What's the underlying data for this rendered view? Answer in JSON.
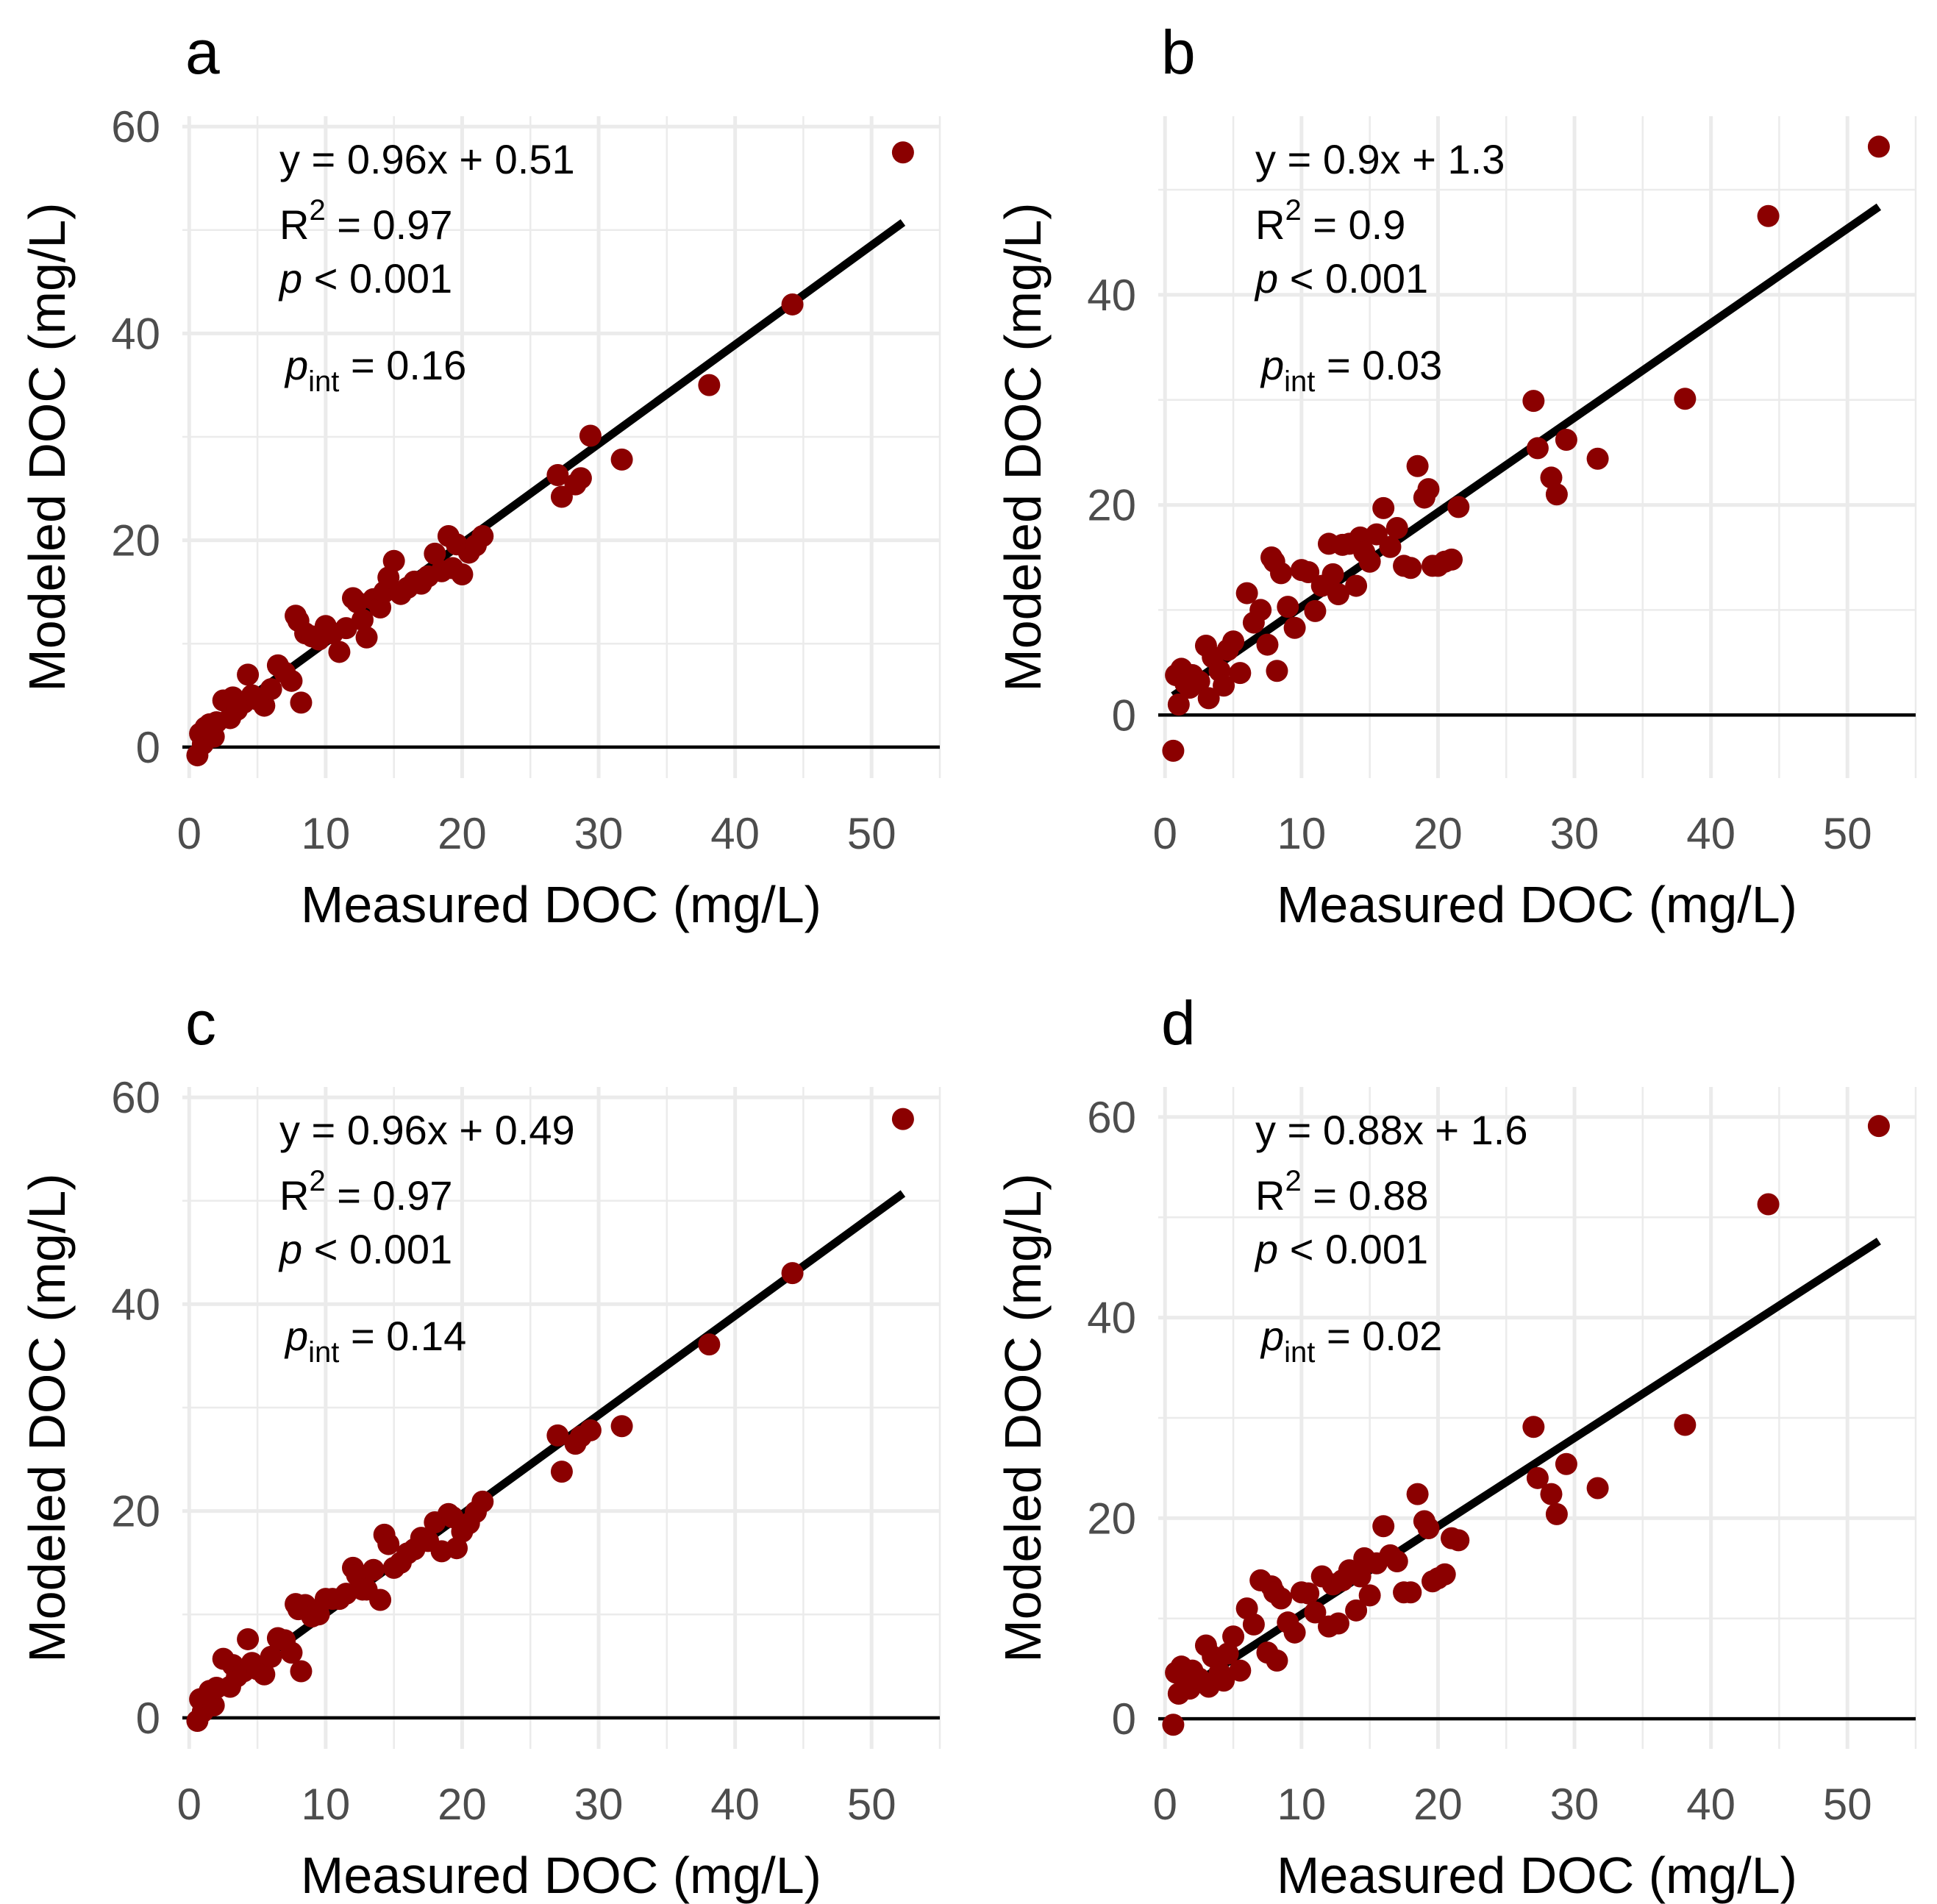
{
  "colors": {
    "point": "#8b0000",
    "fit_line": "#000000",
    "grid": "#ebebeb",
    "tick_text": "#4d4d4d"
  },
  "measured_x": [
    0.6,
    0.8,
    1.0,
    1.2,
    1.5,
    1.8,
    2.0,
    2.5,
    3.0,
    3.2,
    3.5,
    4.0,
    4.3,
    4.6,
    5.0,
    5.5,
    6.0,
    6.5,
    7.0,
    7.5,
    7.8,
    8.0,
    8.2,
    8.5,
    9.0,
    9.5,
    10.0,
    10.5,
    11.0,
    11.5,
    12.0,
    12.3,
    12.7,
    13.0,
    13.5,
    14.0,
    14.3,
    14.6,
    15.0,
    15.5,
    16.0,
    16.5,
    17.0,
    17.5,
    18.0,
    18.5,
    19.0,
    19.3,
    19.6,
    20.0,
    20.5,
    21.0,
    21.5,
    27.0,
    27.3,
    28.3,
    28.7,
    29.4,
    31.7,
    38.1,
    44.2,
    52.3
  ],
  "chart_data": [
    {
      "panel": "a",
      "type": "scatter",
      "xlabel": "Measured DOC (mg/L)",
      "ylabel": "Modeled DOC (mg/L)",
      "xlim": [
        -0.5,
        55
      ],
      "ylim": [
        -3,
        61
      ],
      "x_ticks": [
        "0",
        "10",
        "20",
        "30",
        "40",
        "50"
      ],
      "y_ticks": [
        "0",
        "20",
        "40",
        "60"
      ],
      "y_tick_values": [
        0,
        20,
        40,
        60
      ],
      "fit": {
        "slope": 0.96,
        "intercept": 0.51,
        "x_range": [
          0.6,
          52.3
        ]
      },
      "annotation": {
        "equation": "y = 0.96x + 0.51",
        "r_label": "R",
        "r_sup": "2",
        "r_value": " = 0.97",
        "p_label": "p",
        "p_value": " < 0.001",
        "pint_label": "p",
        "pint_sub": "int",
        "pint_value": " = 0.16"
      },
      "y": [
        -0.8,
        1.3,
        0.3,
        1.9,
        2.2,
        1.0,
        2.4,
        4.5,
        2.8,
        4.8,
        3.6,
        4.3,
        7.0,
        5.0,
        4.6,
        4.0,
        5.6,
        7.9,
        7.2,
        6.4,
        12.7,
        12.2,
        4.3,
        11.0,
        10.7,
        10.4,
        11.7,
        11.0,
        9.2,
        11.5,
        14.4,
        14.0,
        12.3,
        10.6,
        14.3,
        13.5,
        15.0,
        16.4,
        18.0,
        14.8,
        15.4,
        16.0,
        15.8,
        16.5,
        18.7,
        17.0,
        20.4,
        17.3,
        19.6,
        16.7,
        18.8,
        19.5,
        20.4,
        26.3,
        24.2,
        25.4,
        26.0,
        30.1,
        27.8,
        35.0,
        42.8,
        57.5
      ]
    },
    {
      "panel": "b",
      "type": "scatter",
      "xlabel": "Measured DOC (mg/L)",
      "ylabel": "Modeled DOC (mg/L)",
      "xlim": [
        -0.5,
        55
      ],
      "ylim": [
        -6,
        57
      ],
      "x_ticks": [
        "0",
        "10",
        "20",
        "30",
        "40",
        "50"
      ],
      "y_ticks": [
        "0",
        "20",
        "40"
      ],
      "y_tick_values": [
        0,
        20,
        40
      ],
      "fit": {
        "slope": 0.9,
        "intercept": 1.3,
        "x_range": [
          0.6,
          52.3
        ]
      },
      "annotation": {
        "equation": "y = 0.9x + 1.3",
        "r_label": "R",
        "r_sup": "2",
        "r_value": " = 0.9",
        "p_label": "p",
        "p_value": " < 0.001",
        "pint_label": "p",
        "pint_sub": "int",
        "pint_value": " = 0.03"
      },
      "y": [
        -3.4,
        3.8,
        1.0,
        4.4,
        3.0,
        2.6,
        3.8,
        3.2,
        6.6,
        1.6,
        5.5,
        4.2,
        2.8,
        6.2,
        7.0,
        4.0,
        11.6,
        8.8,
        10.0,
        6.7,
        15.0,
        14.6,
        4.2,
        13.5,
        10.3,
        8.3,
        13.8,
        13.6,
        9.9,
        12.3,
        16.3,
        13.4,
        11.5,
        16.2,
        16.3,
        12.3,
        16.9,
        15.5,
        14.6,
        17.2,
        19.7,
        16.0,
        17.8,
        14.2,
        14.0,
        23.7,
        20.7,
        21.5,
        14.2,
        14.2,
        14.6,
        14.8,
        19.8,
        29.9,
        25.4,
        22.6,
        21.0,
        26.2,
        24.4,
        30.1,
        47.5,
        54.1
      ]
    },
    {
      "panel": "c",
      "type": "scatter",
      "xlabel": "Measured DOC (mg/L)",
      "ylabel": "Modeled DOC (mg/L)",
      "xlim": [
        -0.5,
        55
      ],
      "ylim": [
        -3,
        61
      ],
      "x_ticks": [
        "0",
        "10",
        "20",
        "30",
        "40",
        "50"
      ],
      "y_ticks": [
        "0",
        "20",
        "40",
        "60"
      ],
      "y_tick_values": [
        0,
        20,
        40,
        60
      ],
      "fit": {
        "slope": 0.96,
        "intercept": 0.49,
        "x_range": [
          0.6,
          52.3
        ]
      },
      "annotation": {
        "equation": "y = 0.96x + 0.49",
        "r_label": "R",
        "r_sup": "2",
        "r_value": " = 0.97",
        "p_label": "p",
        "p_value": " < 0.001",
        "pint_label": "p",
        "pint_sub": "int",
        "pint_value": " = 0.14"
      },
      "y": [
        -0.3,
        1.8,
        0.6,
        2.0,
        2.6,
        1.2,
        2.9,
        5.7,
        3.0,
        5.1,
        4.0,
        4.5,
        7.6,
        5.3,
        4.7,
        4.2,
        5.9,
        7.7,
        7.5,
        6.3,
        11.0,
        10.5,
        4.5,
        10.9,
        9.8,
        10.0,
        11.5,
        11.5,
        11.5,
        12.0,
        14.5,
        13.8,
        12.4,
        12.4,
        14.3,
        11.4,
        17.7,
        16.8,
        14.5,
        15.0,
        15.9,
        16.3,
        17.4,
        17.1,
        18.9,
        16.1,
        19.7,
        19.4,
        16.4,
        18.0,
        18.8,
        19.9,
        20.9,
        27.3,
        23.8,
        26.5,
        27.2,
        27.8,
        28.2,
        36.1,
        43.0,
        57.9
      ]
    },
    {
      "panel": "d",
      "type": "scatter",
      "xlabel": "Measured DOC (mg/L)",
      "ylabel": "Modeled DOC (mg/L)",
      "xlim": [
        -0.5,
        55
      ],
      "ylim": [
        -3,
        63
      ],
      "x_ticks": [
        "0",
        "10",
        "20",
        "30",
        "40",
        "50"
      ],
      "y_ticks": [
        "0",
        "20",
        "40",
        "60"
      ],
      "y_tick_values": [
        0,
        20,
        40,
        60
      ],
      "fit": {
        "slope": 0.88,
        "intercept": 1.6,
        "x_range": [
          0.6,
          52.3
        ]
      },
      "annotation": {
        "equation": "y = 0.88x + 1.6",
        "r_label": "R",
        "r_sup": "2",
        "r_value": " = 0.88",
        "p_label": "p",
        "p_value": " < 0.001",
        "pint_label": "p",
        "pint_sub": "int",
        "pint_value": " = 0.02"
      },
      "y": [
        -0.6,
        4.6,
        2.5,
        5.2,
        3.5,
        3.0,
        4.8,
        4.0,
        7.3,
        3.2,
        6.2,
        4.6,
        3.8,
        6.5,
        8.2,
        4.8,
        11.0,
        9.4,
        13.8,
        6.6,
        13.2,
        12.6,
        5.8,
        12.0,
        9.6,
        8.6,
        12.6,
        12.5,
        10.6,
        14.2,
        9.2,
        13.4,
        9.5,
        13.8,
        14.8,
        10.8,
        14.2,
        16.0,
        12.3,
        15.5,
        19.2,
        16.3,
        15.7,
        12.6,
        12.6,
        22.4,
        19.7,
        19.0,
        13.7,
        14.0,
        14.4,
        18.0,
        17.8,
        29.1,
        24.0,
        22.4,
        20.4,
        25.4,
        23.0,
        29.3,
        51.3,
        59.1
      ]
    }
  ]
}
